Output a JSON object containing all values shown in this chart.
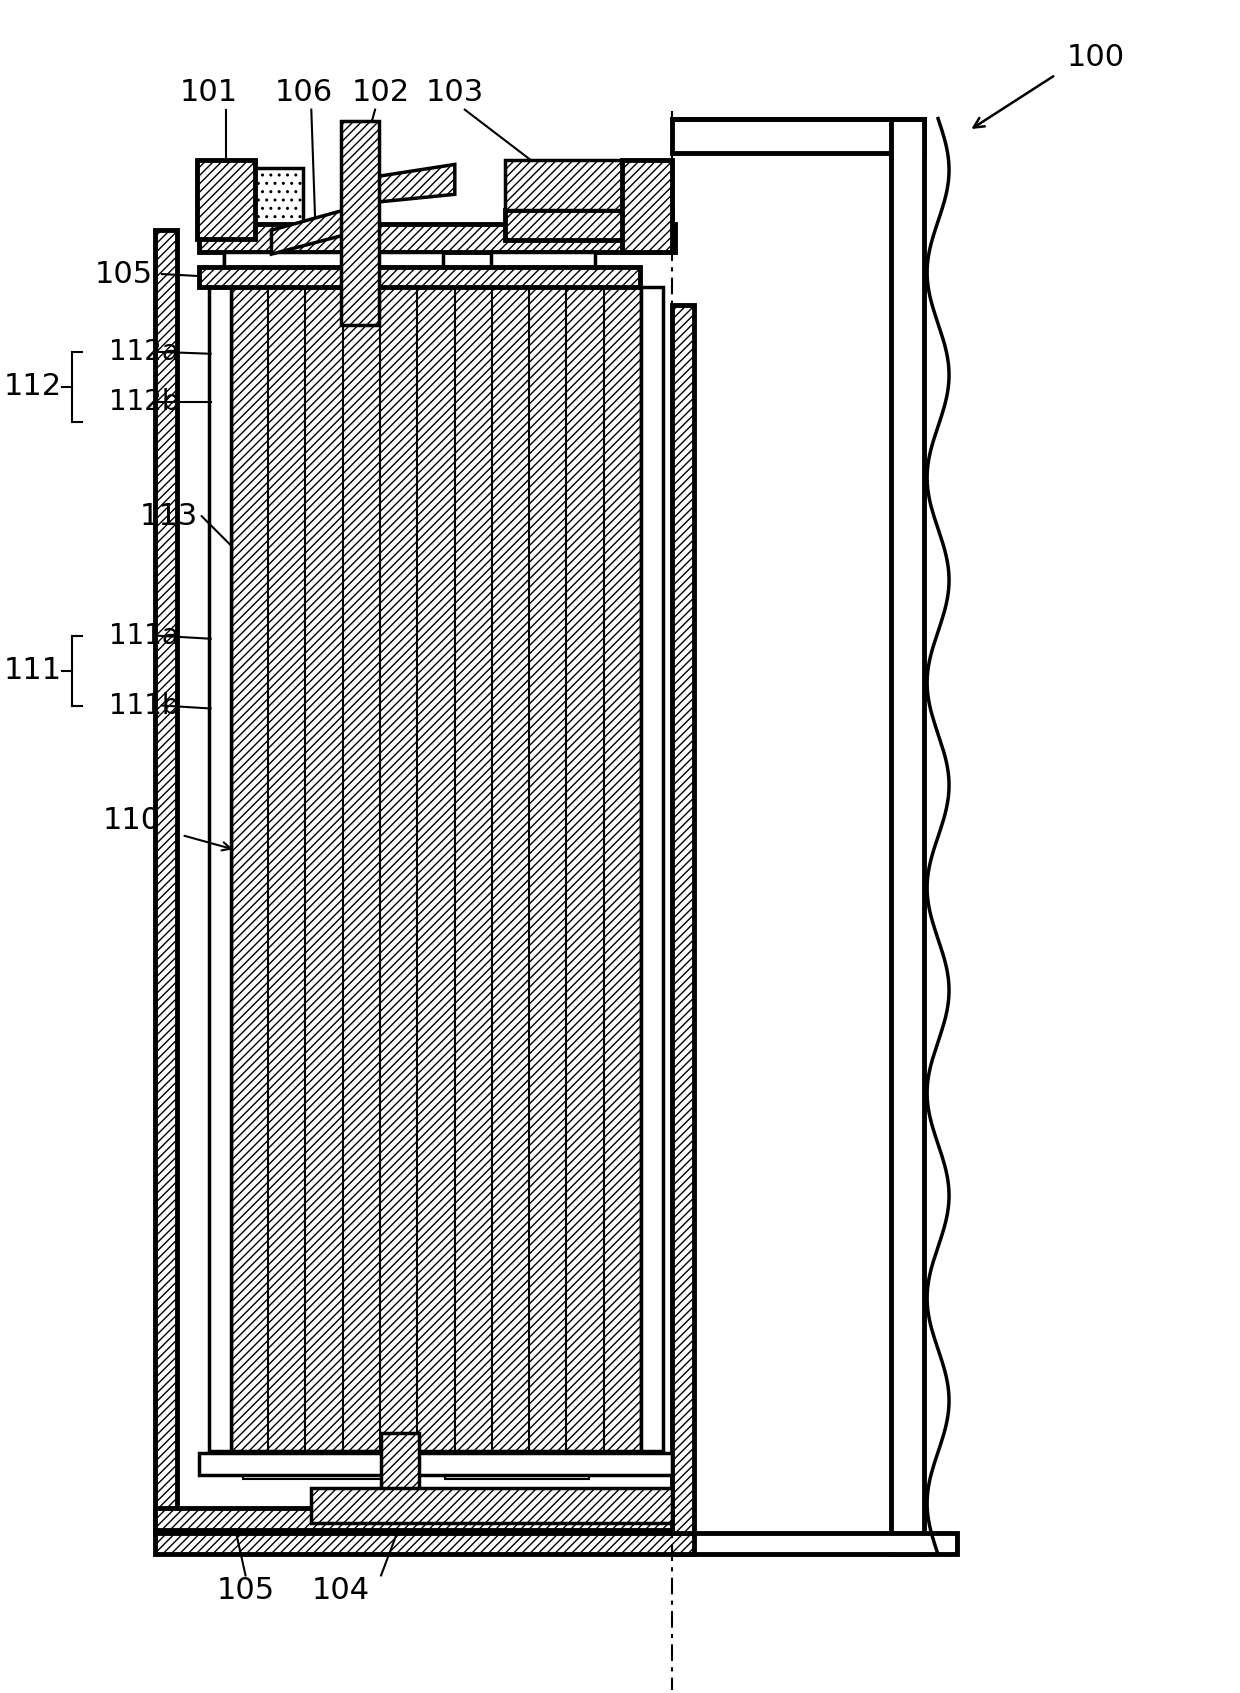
{
  "bg_color": "#ffffff",
  "lc": "#000000",
  "figsize": [
    12.4,
    16.93
  ],
  "dpi": 100,
  "xlim": [
    0,
    1240
  ],
  "ylim": [
    0,
    1693
  ],
  "font_size": 22
}
